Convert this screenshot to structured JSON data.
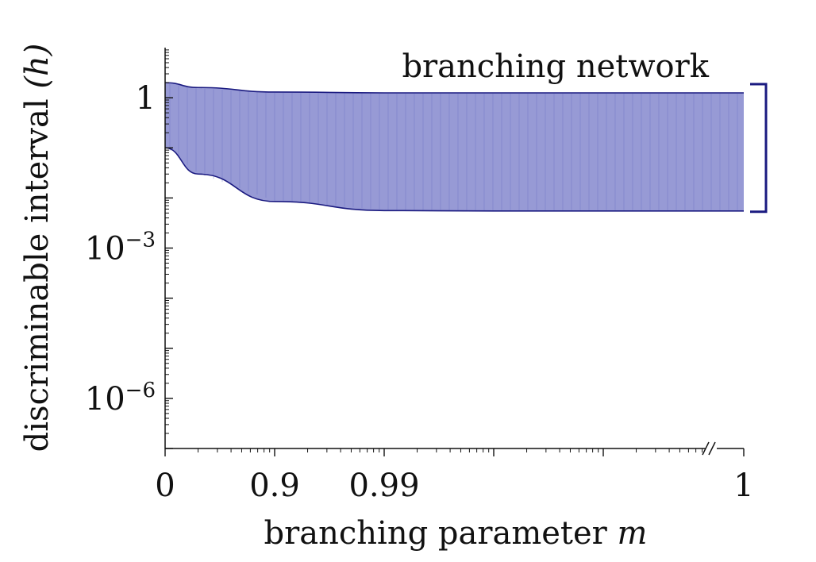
{
  "chart_data": {
    "type": "area",
    "title": "",
    "xlabel": "branching parameter",
    "xlabel_var": "m",
    "ylabel": "discriminable interval",
    "ylabel_var": "(h)",
    "x_scale": "log(1-m), broken before m = 1",
    "y_scale": "log",
    "x_ticks": [
      {
        "value": 0,
        "label": "0"
      },
      {
        "value": 0.9,
        "label": "0.9"
      },
      {
        "value": 0.99,
        "label": "0.99"
      },
      {
        "value": 1,
        "label": "1"
      }
    ],
    "y_ticks": [
      {
        "value": 1,
        "label": "1",
        "exp": ""
      },
      {
        "value": 0.001,
        "label": "10",
        "exp": "−3"
      },
      {
        "value": 1e-06,
        "label": "10",
        "exp": "−6"
      }
    ],
    "ylim": [
      1e-07,
      10
    ],
    "axis_break": "//",
    "series": [
      {
        "name": "branching network",
        "color": "#1a1a80",
        "fill": "#8c8fd0",
        "x": [
          0,
          0.5,
          0.9,
          0.99,
          0.999,
          0.9999,
          1
        ],
        "upper": [
          2.0,
          1.6,
          1.3,
          1.25,
          1.25,
          1.25,
          1.25
        ],
        "lower": [
          0.1,
          0.03,
          0.0085,
          0.0056,
          0.0055,
          0.0055,
          0.0055
        ]
      }
    ],
    "legend": "top-right",
    "grid": false
  }
}
